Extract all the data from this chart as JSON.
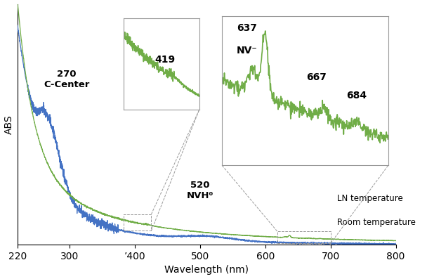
{
  "xlim": [
    220,
    800
  ],
  "xlabel": "Wavelength (nm)",
  "ylabel": "ABS",
  "blue_color": "#4472C4",
  "green_color": "#70AD47",
  "bg_color": "#FFFFFF",
  "annotation_270": "270\nC-Center",
  "annotation_520": "520\nNVH⁰",
  "annotation_419": "419",
  "annotation_637": "637\nNV⁻",
  "annotation_667": "667",
  "annotation_684": "684",
  "label_rt": "Room temperature",
  "label_ln": "LN temperature",
  "tick_400_label": "’400"
}
